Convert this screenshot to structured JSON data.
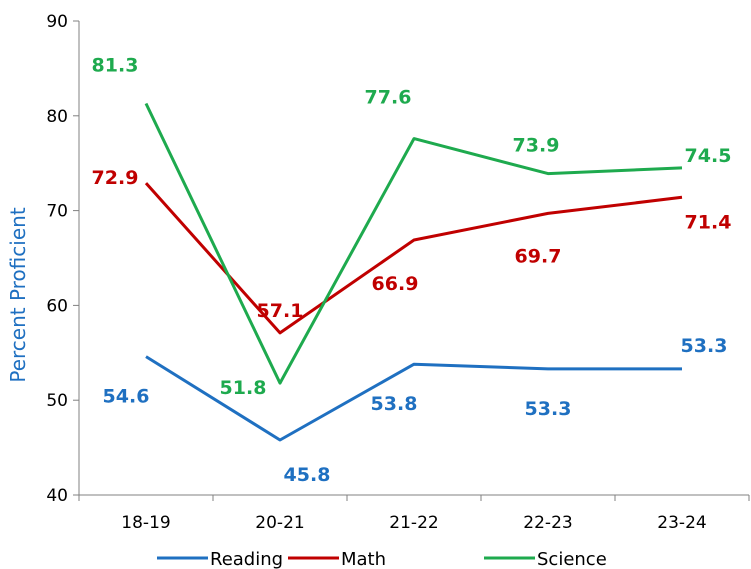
{
  "chart_data": {
    "type": "line",
    "categories": [
      "18-19",
      "20-21",
      "21-22",
      "22-23",
      "23-24"
    ],
    "series": [
      {
        "name": "Reading",
        "color": "#1f70c1",
        "values": [
          54.6,
          45.8,
          53.8,
          53.3,
          53.3
        ],
        "labels": [
          "54.6",
          "45.8",
          "53.8",
          "53.3",
          "53.3"
        ]
      },
      {
        "name": "Math",
        "color": "#c00000",
        "values": [
          72.9,
          57.1,
          66.9,
          69.7,
          71.4
        ],
        "labels": [
          "72.9",
          "57.1",
          "66.9",
          "69.7",
          "71.4"
        ]
      },
      {
        "name": "Science",
        "color": "#1eaa4e",
        "values": [
          81.3,
          51.8,
          77.6,
          73.9,
          74.5
        ],
        "labels": [
          "81.3",
          "51.8",
          "77.6",
          "73.9",
          "74.5"
        ]
      }
    ],
    "ylabel": "Percent Proficient",
    "ylabel_color": "#1f70c1",
    "ylim": [
      40,
      90
    ],
    "yticks": [
      "40",
      "50",
      "60",
      "70",
      "80",
      "90"
    ],
    "grid": false,
    "legend_position": "bottom"
  }
}
